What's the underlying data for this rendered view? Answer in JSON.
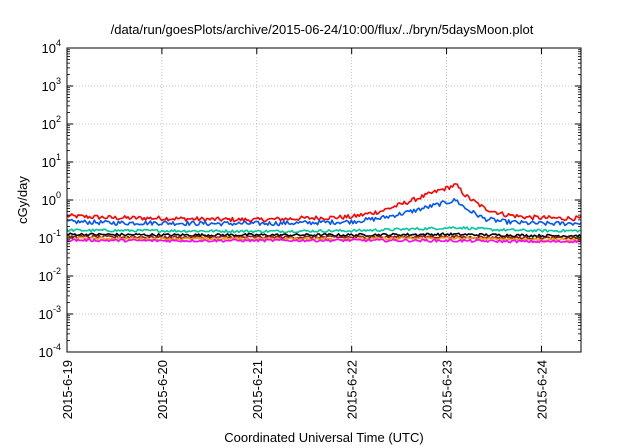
{
  "chart_data": {
    "type": "line",
    "title": "/data/run/goesPlots/archive/2015-06-24/10:00/flux/../bryn/5daysMoon.plot",
    "xlabel": "Coordinated Universal Time (UTC)",
    "ylabel": "cGy/day",
    "y_scale": "log",
    "ylim": [
      0.0001,
      10000
    ],
    "y_ticks": [
      {
        "base": "10",
        "exp": "-4"
      },
      {
        "base": "10",
        "exp": "-3"
      },
      {
        "base": "10",
        "exp": "-2"
      },
      {
        "base": "10",
        "exp": "-1"
      },
      {
        "base": "10",
        "exp": "0"
      },
      {
        "base": "10",
        "exp": "1"
      },
      {
        "base": "10",
        "exp": "2"
      },
      {
        "base": "10",
        "exp": "3"
      },
      {
        "base": "10",
        "exp": "4"
      }
    ],
    "xlim": [
      "2015-06-19",
      "2015-06-24 10:00"
    ],
    "x_ticks": [
      "2015-6-19",
      "2015-6-20",
      "2015-6-21",
      "2015-6-22",
      "2015-6-23",
      "2015-6-24"
    ],
    "grid": true,
    "series": [
      {
        "color": "#ff0000",
        "x_days": [
          0,
          0.5,
          1,
          1.5,
          2,
          2.5,
          3,
          3.3,
          3.6,
          3.9,
          4.1,
          4.2,
          4.4,
          4.6,
          4.8,
          5,
          5.2,
          5.42
        ],
        "values": [
          0.38,
          0.34,
          0.33,
          0.31,
          0.3,
          0.33,
          0.36,
          0.5,
          0.9,
          1.7,
          2.5,
          1.3,
          0.6,
          0.42,
          0.36,
          0.34,
          0.33,
          0.33
        ]
      },
      {
        "color": "#0055ff",
        "x_days": [
          0,
          0.5,
          1,
          1.5,
          2,
          2.5,
          3,
          3.3,
          3.6,
          3.9,
          4.1,
          4.2,
          4.4,
          4.6,
          4.8,
          5,
          5.2,
          5.42
        ],
        "values": [
          0.27,
          0.25,
          0.25,
          0.24,
          0.24,
          0.25,
          0.27,
          0.33,
          0.48,
          0.75,
          1.0,
          0.6,
          0.32,
          0.27,
          0.25,
          0.24,
          0.24,
          0.25
        ]
      },
      {
        "color": "#00c8a0",
        "x_days": [
          0,
          1,
          2,
          3,
          3.9,
          4.1,
          4.5,
          5,
          5.42
        ],
        "values": [
          0.16,
          0.155,
          0.15,
          0.155,
          0.18,
          0.19,
          0.165,
          0.155,
          0.155
        ]
      },
      {
        "color": "#000000",
        "x_days": [
          0,
          1,
          2,
          3,
          4,
          5,
          5.42
        ],
        "values": [
          0.125,
          0.12,
          0.12,
          0.12,
          0.125,
          0.115,
          0.115
        ]
      },
      {
        "color": "#8b1a1a",
        "x_days": [
          0,
          1,
          2,
          3,
          4,
          5,
          5.42
        ],
        "values": [
          0.108,
          0.105,
          0.105,
          0.105,
          0.108,
          0.1,
          0.1
        ]
      },
      {
        "color": "#f2a000",
        "x_days": [
          0,
          1,
          2,
          3,
          4,
          5,
          5.42
        ],
        "values": [
          0.098,
          0.095,
          0.095,
          0.095,
          0.098,
          0.09,
          0.09
        ]
      },
      {
        "color": "#ff00ff",
        "x_days": [
          0,
          1,
          2,
          3,
          4,
          5,
          5.42
        ],
        "values": [
          0.088,
          0.085,
          0.086,
          0.087,
          0.085,
          0.08,
          0.082
        ]
      }
    ]
  }
}
